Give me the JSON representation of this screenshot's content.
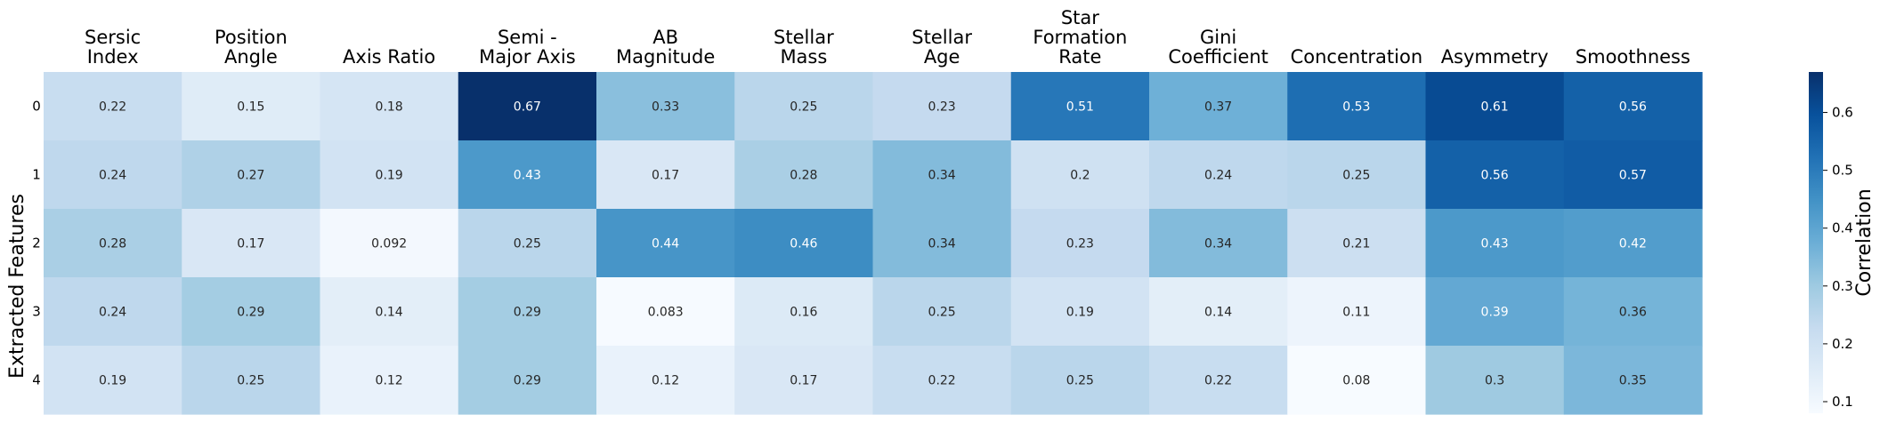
{
  "chart_data": {
    "type": "heatmap",
    "title": "",
    "xlabel": "",
    "ylabel": "Extracted Features",
    "x_categories": [
      [
        "Sersic",
        "Index"
      ],
      [
        "Position",
        "Angle"
      ],
      [
        "Axis Ratio"
      ],
      [
        "Semi -",
        "Major Axis"
      ],
      [
        "AB",
        "Magnitude"
      ],
      [
        "Stellar",
        "Mass"
      ],
      [
        "Stellar",
        "Age"
      ],
      [
        "Star",
        "Formation",
        "Rate"
      ],
      [
        "Gini",
        "Coefficient"
      ],
      [
        "Concentration"
      ],
      [
        "Asymmetry"
      ],
      [
        "Smoothness"
      ]
    ],
    "y_categories": [
      "0",
      "1",
      "2",
      "3",
      "4"
    ],
    "values": [
      [
        0.22,
        0.15,
        0.18,
        0.67,
        0.33,
        0.25,
        0.23,
        0.51,
        0.37,
        0.53,
        0.61,
        0.56
      ],
      [
        0.24,
        0.27,
        0.19,
        0.43,
        0.17,
        0.28,
        0.34,
        0.2,
        0.24,
        0.25,
        0.56,
        0.57
      ],
      [
        0.28,
        0.17,
        0.092,
        0.25,
        0.44,
        0.46,
        0.34,
        0.23,
        0.34,
        0.21,
        0.43,
        0.42
      ],
      [
        0.24,
        0.29,
        0.14,
        0.29,
        0.083,
        0.16,
        0.25,
        0.19,
        0.14,
        0.11,
        0.39,
        0.36
      ],
      [
        0.19,
        0.25,
        0.12,
        0.29,
        0.12,
        0.17,
        0.22,
        0.25,
        0.22,
        0.08,
        0.3,
        0.35
      ]
    ],
    "colormap": "Blues",
    "colors": [
      "#f7fbff",
      "#deebf7",
      "#c6dbef",
      "#9ecae1",
      "#6baed6",
      "#4292c6",
      "#2171b5",
      "#08519c",
      "#08306b"
    ],
    "vmin": 0.08,
    "vmax": 0.67,
    "colorbar": {
      "label": "Correlation",
      "ticks": [
        0.1,
        0.2,
        0.3,
        0.4,
        0.5,
        0.6
      ],
      "tick_labels": [
        "0.1",
        "0.2",
        "0.3",
        "0.4",
        "0.5",
        "0.6"
      ]
    },
    "legend_placement": "right",
    "grid": false
  }
}
